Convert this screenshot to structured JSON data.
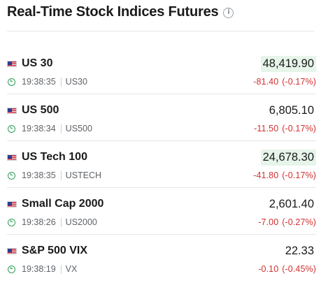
{
  "widget": {
    "title": "Real-Time Stock Indices Futures",
    "info_icon": "i"
  },
  "indices": [
    {
      "name": "US 30",
      "time": "19:38:35",
      "symbol": "US30",
      "price": "48,419.90",
      "change": "-81.40",
      "change_pct": "(-0.17%)",
      "highlighted": true,
      "flag": "us-flag-icon"
    },
    {
      "name": "US 500",
      "time": "19:38:34",
      "symbol": "US500",
      "price": "6,805.10",
      "change": "-11.50",
      "change_pct": "(-0.17%)",
      "highlighted": false,
      "flag": "us-flag-icon"
    },
    {
      "name": "US Tech 100",
      "time": "19:38:35",
      "symbol": "USTECH",
      "price": "24,678.30",
      "change": "-41.80",
      "change_pct": "(-0.17%)",
      "highlighted": true,
      "flag": "us-flag-icon"
    },
    {
      "name": "Small Cap 2000",
      "time": "19:38:26",
      "symbol": "US2000",
      "price": "2,601.40",
      "change": "-7.00",
      "change_pct": "(-0.27%)",
      "highlighted": false,
      "flag": "us-flag-icon"
    },
    {
      "name": "S&P 500 VIX",
      "time": "19:38:19",
      "symbol": "VX",
      "price": "22.33",
      "change": "-0.10",
      "change_pct": "(-0.45%)",
      "highlighted": false,
      "flag": "us-flag-icon"
    }
  ],
  "colors": {
    "negative": "#d32f2f",
    "clock": "#2e9e57",
    "price_highlight": "#e6f4ea"
  }
}
